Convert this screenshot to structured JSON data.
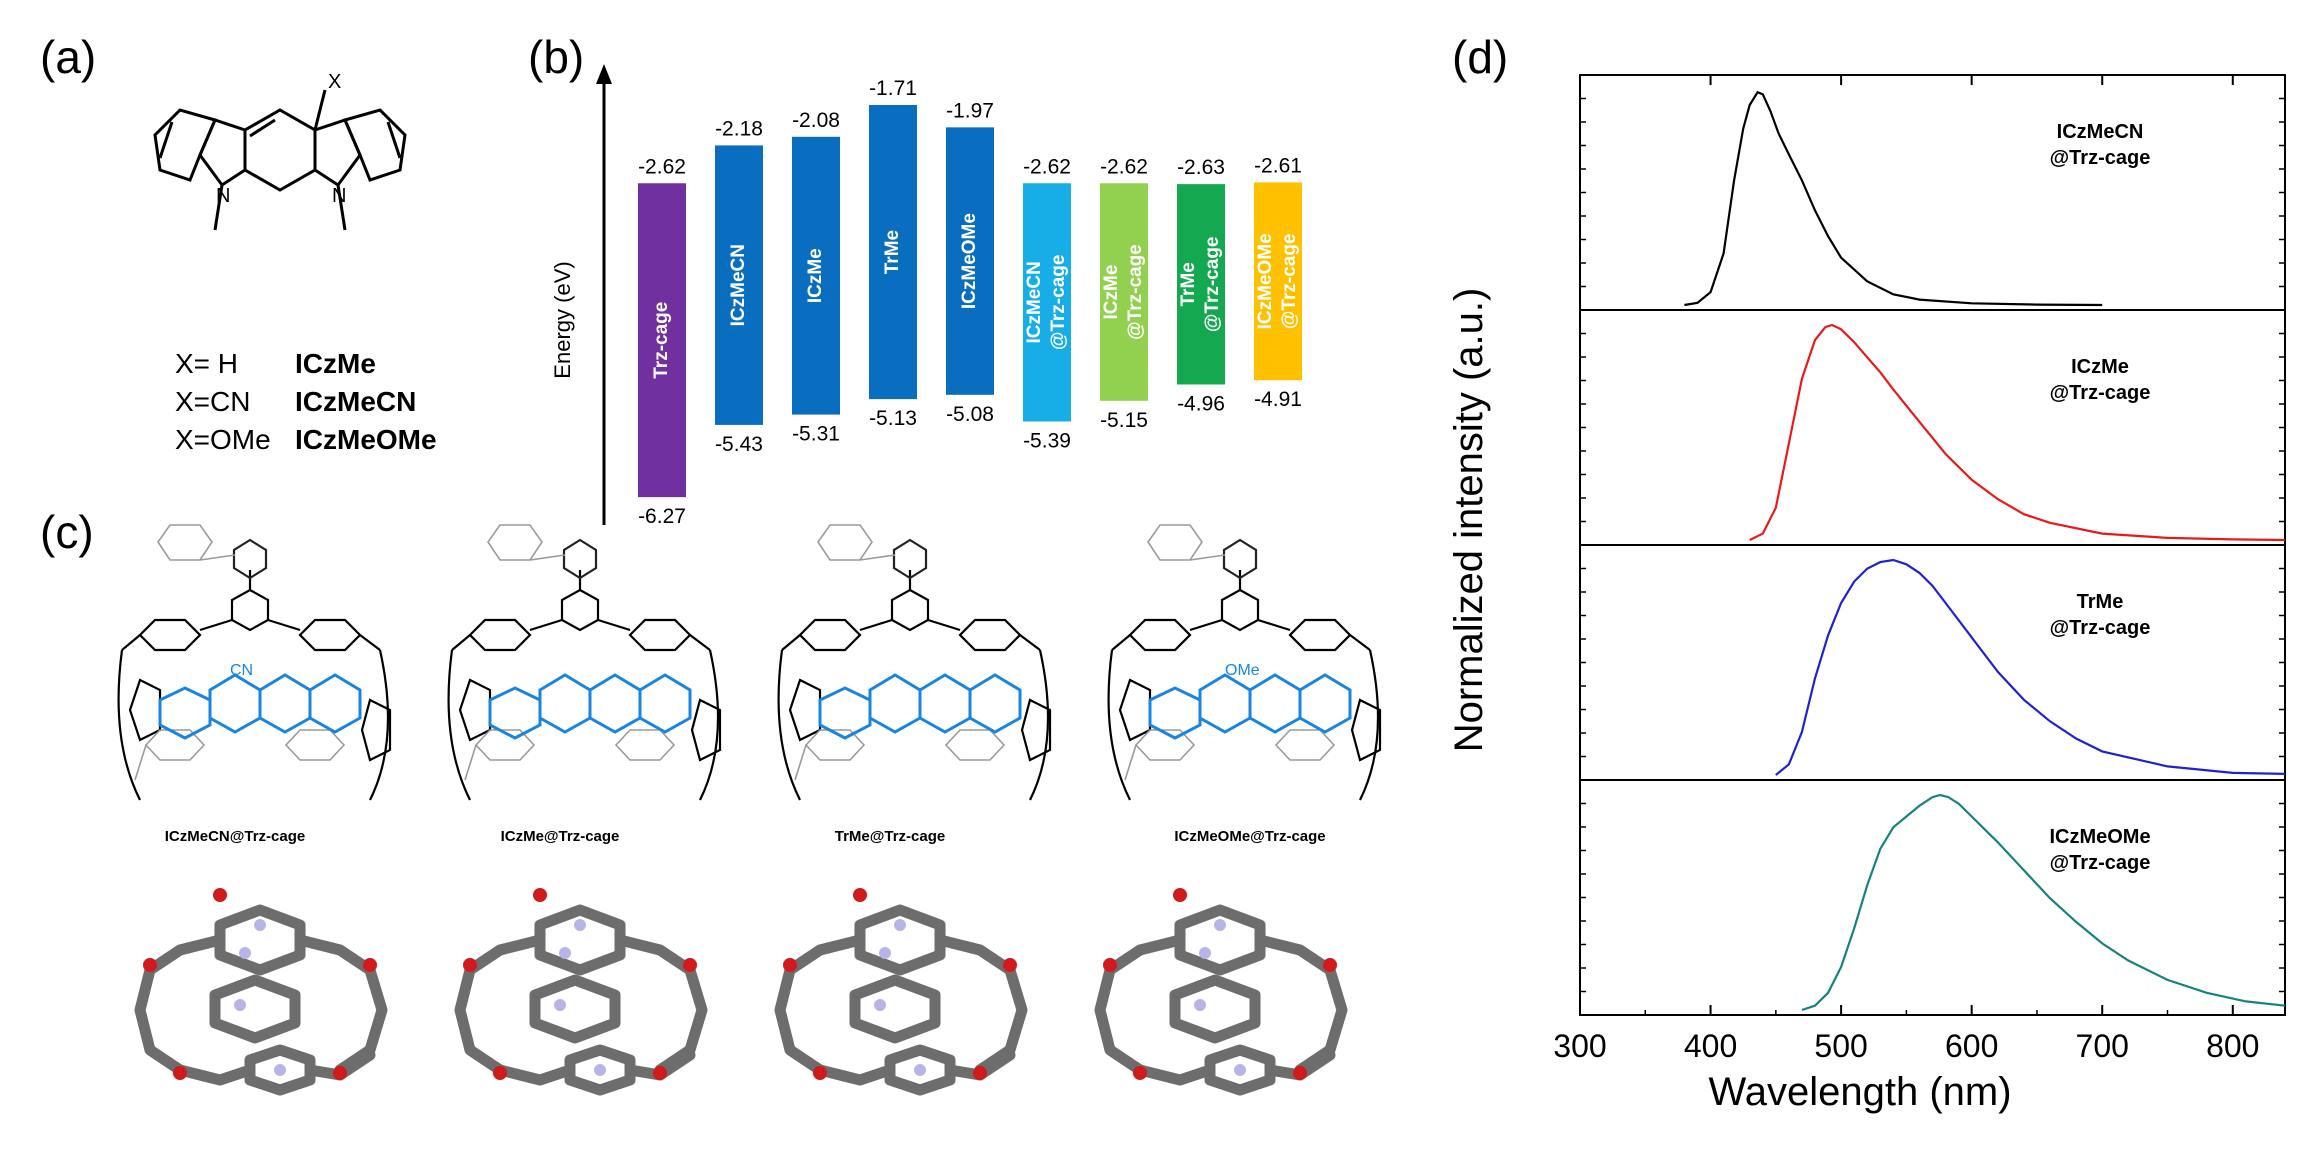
{
  "panel_labels": {
    "a": "(a)",
    "b": "(b)",
    "c": "(c)",
    "d": "(d)"
  },
  "panel_a": {
    "substituent": "X",
    "nitrogen": "N",
    "legend": [
      {
        "sub": "X= H",
        "name": "ICzMe"
      },
      {
        "sub": "X=CN",
        "name": "ICzMeCN"
      },
      {
        "sub": "X=OMe",
        "name": "ICzMeOMe"
      }
    ]
  },
  "panel_c": {
    "captions": [
      "ICzMeCN@Trz-cage",
      "ICzMe@Trz-cage",
      "TrMe@Trz-cage",
      "ICzMeOMe@Trz-cage"
    ],
    "cn_label": "CN",
    "ome_label": "OMe"
  },
  "chart_data": [
    {
      "type": "bar",
      "title": "",
      "ylabel": "Energy (eV)",
      "categories": [
        "Trz-cage",
        "ICzMeCN",
        "ICzMe",
        "TrMe",
        "ICzMeOMe",
        "ICzMeCN @Trz-cage",
        "ICzMe @Trz-cage",
        "TrMe @Trz-cage",
        "ICzMeOMe @Trz-cage"
      ],
      "series": [
        {
          "values": [
            -2.62,
            -2.18,
            -2.08,
            -1.71,
            -1.97,
            -2.62,
            -2.62,
            -2.63,
            -2.61
          ]
        },
        {
          "values": [
            -6.27,
            -5.43,
            -5.31,
            -5.13,
            -5.08,
            -5.39,
            -5.15,
            -4.96,
            -4.91
          ]
        }
      ],
      "top_labels": [
        "-2.62",
        "-2.18",
        "-2.08",
        "-1.71",
        "-1.97",
        "-2.62",
        "-2.62",
        "-2.63",
        "-2.61"
      ],
      "bottom_labels": [
        "-6.27",
        "-5.43",
        "-5.31",
        "-5.13",
        "-5.08",
        "-5.39",
        "-5.15",
        "-4.96",
        "-4.91"
      ],
      "colors": [
        "#7030a0",
        "#0a6ec0",
        "#0a6ec0",
        "#0a6ec0",
        "#0a6ec0",
        "#17aee8",
        "#92d050",
        "#14a851",
        "#ffc000"
      ]
    },
    {
      "type": "line",
      "xlabel": "Wavelength (nm)",
      "ylabel": "Normalized intensity (a.u.)",
      "xlim": [
        300,
        840
      ],
      "xticks": [
        "300",
        "400",
        "500",
        "600",
        "700",
        "800"
      ],
      "grid": false,
      "series": [
        {
          "name": "ICzMeCN @Trz-cage",
          "color": "#000000",
          "x": [
            380,
            390,
            400,
            410,
            418,
            425,
            430,
            436,
            440,
            446,
            452,
            460,
            470,
            480,
            490,
            500,
            520,
            540,
            560,
            600,
            650,
            700
          ],
          "y": [
            0.0,
            0.01,
            0.06,
            0.24,
            0.58,
            0.82,
            0.93,
            0.99,
            0.98,
            0.9,
            0.8,
            0.7,
            0.58,
            0.44,
            0.32,
            0.22,
            0.11,
            0.05,
            0.025,
            0.008,
            0.002,
            0.0
          ]
        },
        {
          "name": "ICzMe @Trz-cage",
          "color": "#e8191a",
          "x": [
            430,
            440,
            450,
            460,
            470,
            480,
            488,
            493,
            500,
            510,
            520,
            530,
            540,
            560,
            580,
            600,
            620,
            640,
            660,
            700,
            750,
            800,
            840
          ],
          "y": [
            0.0,
            0.03,
            0.15,
            0.45,
            0.75,
            0.93,
            0.99,
            1.0,
            0.98,
            0.92,
            0.85,
            0.78,
            0.7,
            0.55,
            0.4,
            0.28,
            0.19,
            0.12,
            0.08,
            0.03,
            0.01,
            0.003,
            0.0
          ]
        },
        {
          "name": "TrMe @Trz-cage",
          "color": "#2222cc",
          "x": [
            450,
            460,
            470,
            480,
            490,
            500,
            510,
            520,
            530,
            540,
            550,
            560,
            570,
            580,
            600,
            620,
            640,
            660,
            680,
            700,
            750,
            800,
            840
          ],
          "y": [
            0.0,
            0.05,
            0.2,
            0.45,
            0.65,
            0.8,
            0.9,
            0.96,
            0.99,
            1.0,
            0.98,
            0.94,
            0.88,
            0.8,
            0.64,
            0.48,
            0.35,
            0.25,
            0.17,
            0.11,
            0.04,
            0.01,
            0.005
          ]
        },
        {
          "name": "ICzMeOMe @Trz-cage",
          "color": "#15837b",
          "x": [
            470,
            480,
            490,
            500,
            510,
            520,
            530,
            540,
            550,
            560,
            570,
            576,
            582,
            590,
            600,
            620,
            640,
            660,
            680,
            700,
            720,
            750,
            780,
            810,
            840
          ],
          "y": [
            0.0,
            0.02,
            0.08,
            0.2,
            0.38,
            0.58,
            0.75,
            0.85,
            0.9,
            0.95,
            0.99,
            1.0,
            0.99,
            0.96,
            0.9,
            0.78,
            0.65,
            0.52,
            0.41,
            0.31,
            0.23,
            0.14,
            0.08,
            0.04,
            0.02
          ]
        }
      ]
    }
  ]
}
